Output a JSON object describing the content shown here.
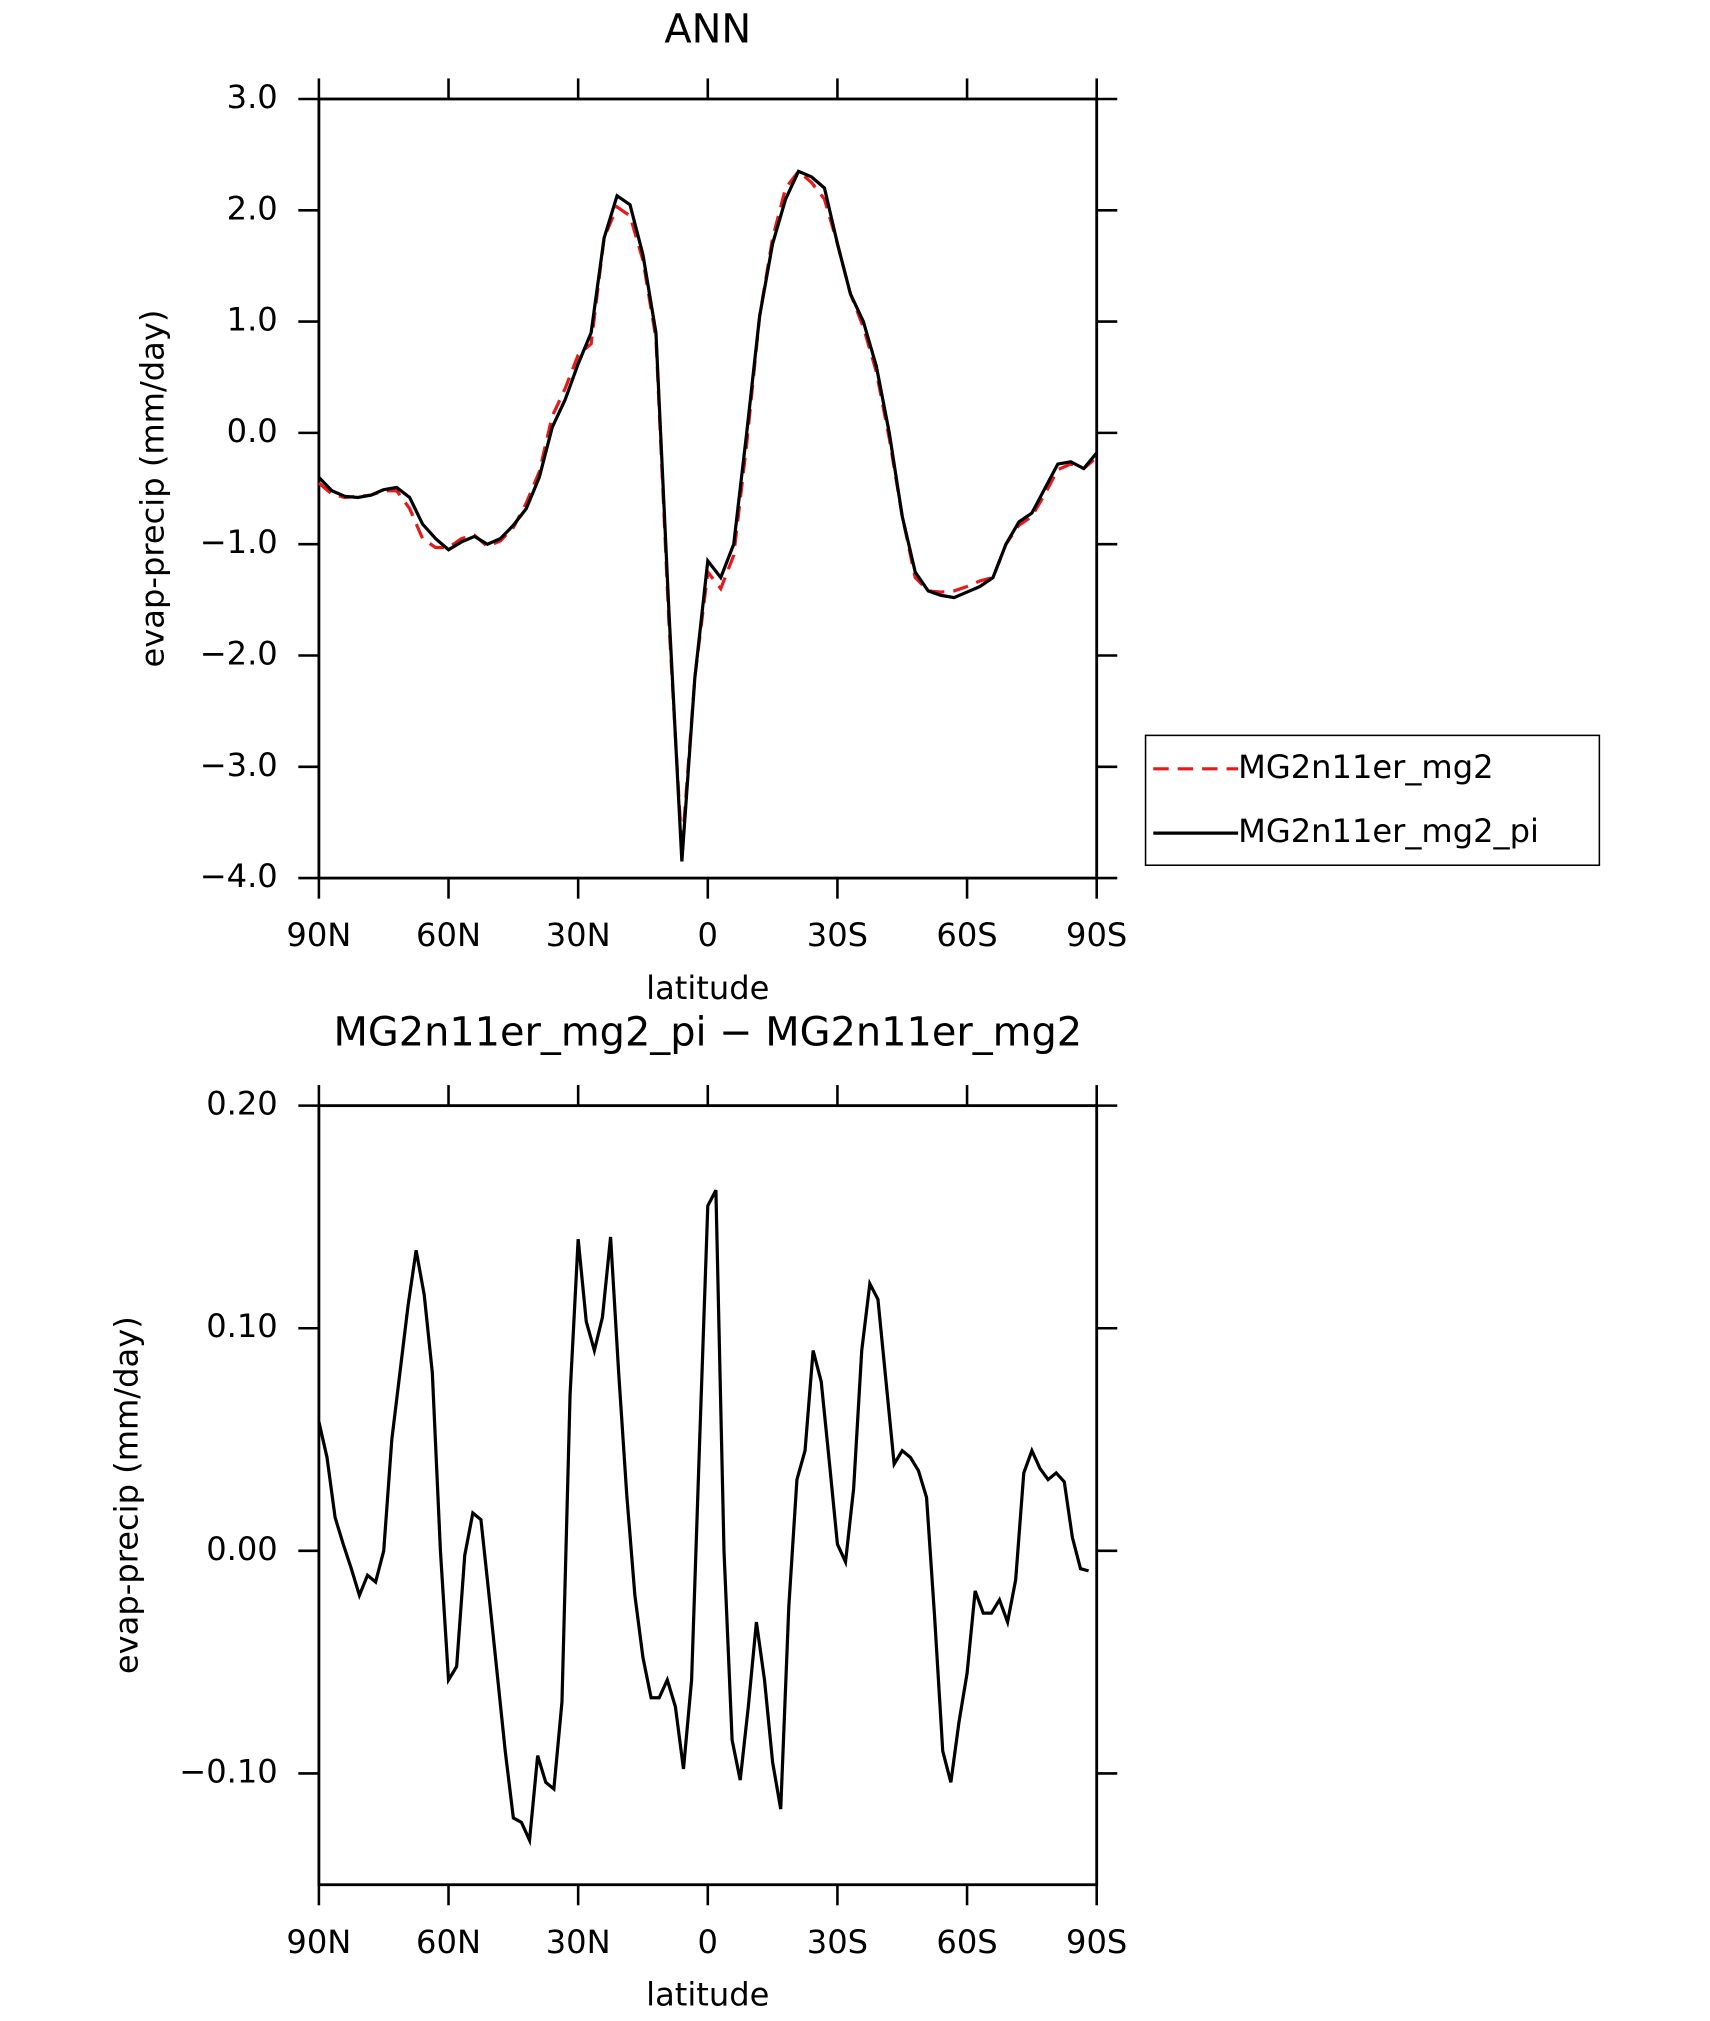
{
  "chart_data": [
    {
      "type": "line",
      "title": "ANN",
      "xlabel": "latitude",
      "ylabel": "evap-precip (mm/day)",
      "x": [
        90,
        87,
        84,
        81,
        78,
        75,
        72,
        69,
        66,
        63,
        60,
        57,
        54,
        51,
        48,
        45,
        42,
        39,
        36,
        33,
        30,
        27,
        24,
        21,
        18,
        15,
        12,
        9,
        6,
        3,
        0,
        -3,
        -6,
        -9,
        -12,
        -15,
        -18,
        -21,
        -24,
        -27,
        -30,
        -33,
        -36,
        -39,
        -42,
        -45,
        -48,
        -51,
        -54,
        -57,
        -60,
        -63,
        -66,
        -69,
        -72,
        -75,
        -78,
        -81,
        -84,
        -87,
        -90
      ],
      "series": [
        {
          "name": "MG2n11er_mg2",
          "color": "#e41a1c",
          "dash": true,
          "values": [
            -0.45,
            -0.55,
            -0.58,
            -0.57,
            -0.56,
            -0.52,
            -0.52,
            -0.68,
            -0.95,
            -1.03,
            -1.03,
            -0.95,
            -0.92,
            -1.02,
            -0.97,
            -0.85,
            -0.63,
            -0.35,
            0.15,
            0.4,
            0.7,
            0.8,
            1.75,
            2.03,
            1.95,
            1.55,
            0.85,
            -1.7,
            -3.75,
            -2.2,
            -1.25,
            -1.4,
            -1.1,
            -0.1,
            1.05,
            1.75,
            2.2,
            2.35,
            2.25,
            2.1,
            1.7,
            1.25,
            0.95,
            0.55,
            -0.05,
            -0.75,
            -1.3,
            -1.42,
            -1.43,
            -1.42,
            -1.38,
            -1.33,
            -1.3,
            -1.0,
            -0.83,
            -0.75,
            -0.55,
            -0.33,
            -0.28,
            -0.32,
            -0.22
          ]
        },
        {
          "name": "MG2n11er_mg2_pi",
          "color": "#000000",
          "dash": false,
          "values": [
            -0.4,
            -0.52,
            -0.57,
            -0.58,
            -0.56,
            -0.51,
            -0.49,
            -0.58,
            -0.82,
            -0.95,
            -1.05,
            -0.98,
            -0.93,
            -1.0,
            -0.95,
            -0.83,
            -0.68,
            -0.4,
            0.05,
            0.3,
            0.62,
            0.9,
            1.75,
            2.13,
            2.05,
            1.6,
            0.9,
            -1.6,
            -3.85,
            -2.2,
            -1.15,
            -1.3,
            -1.0,
            0.0,
            1.05,
            1.7,
            2.1,
            2.35,
            2.3,
            2.2,
            1.7,
            1.25,
            1.0,
            0.6,
            0.0,
            -0.75,
            -1.25,
            -1.42,
            -1.46,
            -1.48,
            -1.43,
            -1.38,
            -1.3,
            -1.0,
            -0.8,
            -0.72,
            -0.5,
            -0.28,
            -0.26,
            -0.32,
            -0.18
          ]
        }
      ],
      "xlim": [
        90,
        -90
      ],
      "xticks": [
        {
          "value": 90,
          "label": "90N"
        },
        {
          "value": 60,
          "label": "60N"
        },
        {
          "value": 30,
          "label": "30N"
        },
        0,
        {
          "value": -30,
          "label": "30S"
        },
        {
          "value": -60,
          "label": "60S"
        },
        {
          "value": -90,
          "label": "90S"
        }
      ],
      "ylim": [
        -4,
        3
      ],
      "yticks": [
        {
          "value": 3,
          "label": "3.0"
        },
        {
          "value": 2,
          "label": "2.0"
        },
        {
          "value": 1,
          "label": "1.0"
        },
        {
          "value": 0,
          "label": "0.0"
        },
        {
          "value": -1,
          "label": "−1.0"
        },
        {
          "value": -2,
          "label": "−2.0"
        },
        {
          "value": -3,
          "label": "−3.0"
        },
        {
          "value": -4,
          "label": "−4.0"
        }
      ],
      "legend": "right",
      "grid": false
    },
    {
      "type": "line",
      "title": "MG2n11er_mg2_pi − MG2n11er_mg2",
      "xlabel": "latitude",
      "ylabel": "evap-precip (mm/day)",
      "x": [
        90,
        88.125,
        86.25,
        84.375,
        82.5,
        80.625,
        78.75,
        76.875,
        75,
        73.125,
        71.25,
        69.375,
        67.5,
        65.625,
        63.75,
        61.875,
        60,
        58.125,
        56.25,
        54.375,
        52.5,
        50.625,
        48.75,
        46.875,
        45,
        43.125,
        41.25,
        39.375,
        37.5,
        35.625,
        33.75,
        31.875,
        30,
        28.125,
        26.25,
        24.375,
        22.5,
        20.625,
        18.75,
        16.875,
        15,
        13.125,
        11.25,
        9.375,
        7.5,
        5.625,
        3.75,
        1.875,
        0,
        -1.875,
        -3.75,
        -5.625,
        -7.5,
        -9.375,
        -11.25,
        -13.125,
        -15,
        -16.875,
        -18.75,
        -20.625,
        -22.5,
        -24.375,
        -26.25,
        -28.125,
        -30,
        -31.875,
        -33.75,
        -35.625,
        -37.5,
        -39.375,
        -41.25,
        -43.125,
        -45,
        -46.875,
        -48.75,
        -50.625,
        -52.5,
        -54.375,
        -56.25,
        -58.125,
        -60,
        -61.875,
        -63.75,
        -65.625,
        -67.5,
        -69.375,
        -71.25,
        -73.125,
        -75,
        -76.875,
        -78.75,
        -80.625,
        -82.5,
        -84.375,
        -86.25,
        -88.125
      ],
      "color": "#000000",
      "values": [
        0.058,
        0.042,
        0.015,
        0.003,
        -0.008,
        -0.02,
        -0.011,
        -0.014,
        0.0,
        0.05,
        0.08,
        0.11,
        0.135,
        0.115,
        0.08,
        0.0,
        -0.058,
        -0.052,
        -0.002,
        0.017,
        0.014,
        -0.02,
        -0.055,
        -0.09,
        -0.12,
        -0.122,
        -0.13,
        -0.092,
        -0.104,
        -0.107,
        -0.068,
        0.07,
        0.14,
        0.103,
        0.09,
        0.105,
        0.141,
        0.08,
        0.025,
        -0.02,
        -0.048,
        -0.066,
        -0.066,
        -0.058,
        -0.07,
        -0.098,
        -0.058,
        0.05,
        0.155,
        0.162,
        0.0,
        -0.085,
        -0.103,
        -0.07,
        -0.032,
        -0.058,
        -0.095,
        -0.116,
        -0.025,
        0.032,
        0.045,
        0.09,
        0.076,
        0.04,
        0.003,
        -0.005,
        0.028,
        0.09,
        0.12,
        0.113,
        0.076,
        0.039,
        0.045,
        0.042,
        0.036,
        0.024,
        -0.03,
        -0.09,
        -0.104,
        -0.077,
        -0.055,
        -0.018,
        -0.028,
        -0.028,
        -0.022,
        -0.032,
        -0.013,
        0.035,
        0.045,
        0.037,
        0.032,
        0.035,
        0.031,
        0.006,
        -0.008,
        -0.009
      ],
      "xlim": [
        90,
        -90
      ],
      "xticks": [
        {
          "value": 90,
          "label": "90N"
        },
        {
          "value": 60,
          "label": "60N"
        },
        {
          "value": 30,
          "label": "30N"
        },
        0,
        {
          "value": -30,
          "label": "30S"
        },
        {
          "value": -60,
          "label": "60S"
        },
        {
          "value": -90,
          "label": "90S"
        }
      ],
      "ylim": [
        -0.15,
        0.2
      ],
      "yticks": [
        {
          "value": 0.2,
          "label": "0.20"
        },
        {
          "value": 0.1,
          "label": "0.10"
        },
        {
          "value": 0,
          "label": "0.00"
        },
        {
          "value": -0.1,
          "label": "−0.10"
        }
      ],
      "grid": false
    }
  ]
}
